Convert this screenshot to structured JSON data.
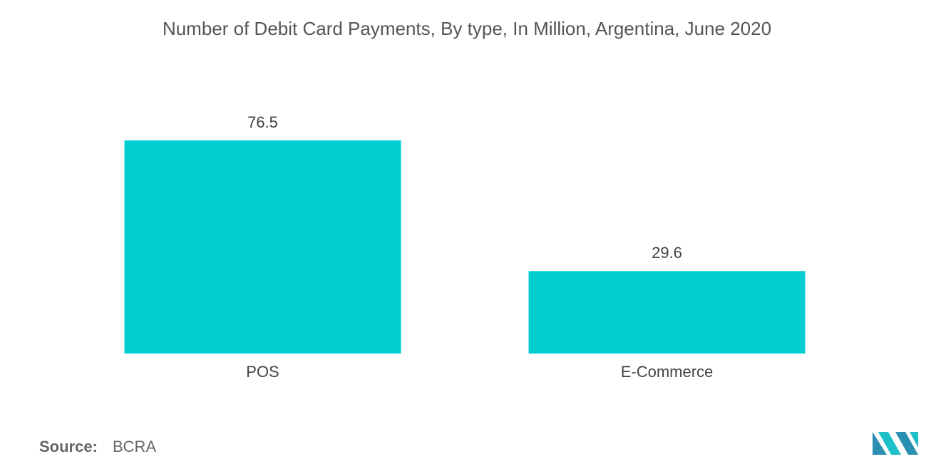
{
  "chart_data": {
    "type": "bar",
    "title": "Number of Debit Card Payments, By type, In Million, Argentina, June 2020",
    "categories": [
      "POS",
      "E-Commerce"
    ],
    "values": [
      76.5,
      29.6
    ],
    "color": "#00ced1"
  },
  "footer": {
    "source_label": "Source:",
    "source": "BCRA"
  }
}
